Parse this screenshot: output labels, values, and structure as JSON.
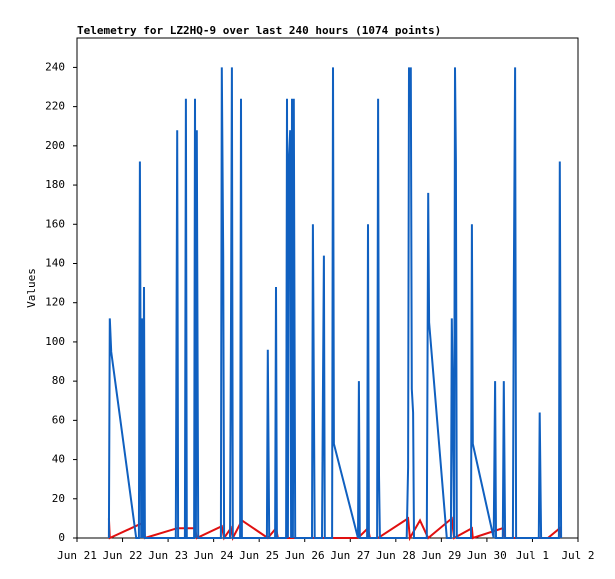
{
  "chart_data": {
    "type": "line",
    "title": "Telemetry for LZ2HQ-9 over last 240 hours (1074 points)",
    "ylabel": "Values",
    "xlim": [
      0,
      11
    ],
    "ylim": [
      0,
      255
    ],
    "xticks": [
      {
        "value": 0,
        "label": "Jun 21"
      },
      {
        "value": 1,
        "label": "Jun 22"
      },
      {
        "value": 2,
        "label": "Jun 23"
      },
      {
        "value": 3,
        "label": "Jun 24"
      },
      {
        "value": 4,
        "label": "Jun 25"
      },
      {
        "value": 5,
        "label": "Jun 26"
      },
      {
        "value": 6,
        "label": "Jun 27"
      },
      {
        "value": 7,
        "label": "Jun 28"
      },
      {
        "value": 8,
        "label": "Jun 29"
      },
      {
        "value": 9,
        "label": "Jun 30"
      },
      {
        "value": 10,
        "label": "Jul 1"
      },
      {
        "value": 11,
        "label": "Jul 2"
      }
    ],
    "yticks": [
      0,
      20,
      40,
      60,
      80,
      100,
      120,
      140,
      160,
      180,
      200,
      220,
      240
    ],
    "series": [
      {
        "color": "#1060c0",
        "x": [
          0.7,
          0.72,
          0.75,
          1.3,
          1.36,
          1.38,
          1.41,
          1.43,
          1.45,
          1.47,
          1.49,
          2.17,
          2.2,
          2.22,
          2.37,
          2.39,
          2.41,
          2.57,
          2.59,
          2.61,
          2.63,
          2.66,
          3.16,
          3.18,
          3.21,
          3.23,
          3.36,
          3.38,
          3.4,
          3.42,
          3.58,
          3.6,
          3.62,
          4.17,
          4.19,
          4.22,
          4.35,
          4.37,
          4.39,
          4.59,
          4.61,
          4.63,
          4.65,
          4.68,
          4.7,
          4.72,
          4.74,
          4.76,
          4.79,
          5.16,
          5.18,
          5.2,
          5.22,
          5.38,
          5.4,
          5.42,
          5.44,
          5.6,
          5.62,
          5.64,
          6.17,
          6.19,
          6.21,
          6.37,
          6.39,
          6.41,
          6.59,
          6.61,
          6.63,
          6.65,
          7.24,
          7.27,
          7.29,
          7.31,
          7.33,
          7.35,
          7.38,
          7.4,
          7.68,
          7.71,
          7.73,
          8.12,
          8.21,
          8.23,
          8.25,
          8.28,
          8.3,
          8.32,
          8.34,
          8.65,
          8.67,
          8.69,
          9.15,
          9.18,
          9.2,
          9.35,
          9.37,
          9.4,
          9.57,
          9.59,
          9.62,
          9.64,
          10.14,
          10.16,
          10.19,
          10.58,
          10.6,
          10.63
        ],
        "values": [
          0,
          112,
          95,
          0,
          0,
          192,
          0,
          112,
          0,
          128,
          0,
          0,
          208,
          0,
          0,
          224,
          0,
          0,
          224,
          0,
          208,
          0,
          0,
          240,
          144,
          0,
          0,
          96,
          240,
          0,
          0,
          224,
          0,
          0,
          96,
          0,
          0,
          128,
          0,
          0,
          224,
          0,
          192,
          208,
          0,
          224,
          0,
          224,
          0,
          0,
          160,
          80,
          0,
          0,
          72,
          144,
          0,
          0,
          240,
          48,
          0,
          80,
          0,
          0,
          160,
          0,
          0,
          224,
          32,
          0,
          0,
          36,
          240,
          224,
          240,
          76,
          64,
          0,
          0,
          176,
          110,
          0,
          0,
          112,
          70,
          0,
          240,
          192,
          0,
          0,
          160,
          48,
          0,
          80,
          0,
          0,
          80,
          0,
          0,
          128,
          240,
          0,
          0,
          64,
          0,
          0,
          192,
          0
        ]
      },
      {
        "color": "#e01010",
        "x": [
          0.7,
          0.72,
          1.47,
          1.49,
          2.2,
          2.59,
          2.63,
          3.18,
          3.23,
          3.38,
          3.42,
          3.62,
          4.19,
          4.37,
          4.41,
          6.17,
          6.39,
          6.43,
          6.61,
          7.27,
          7.31,
          7.53,
          7.71,
          8.23,
          8.28,
          8.67,
          8.69,
          9.35,
          9.4,
          10.34,
          10.6,
          10.63
        ],
        "values": [
          10,
          0,
          8,
          0,
          5,
          5,
          0,
          6,
          0,
          5,
          0,
          9,
          0,
          5,
          0,
          0,
          5,
          0,
          0,
          10,
          0,
          9,
          0,
          10,
          0,
          5,
          0,
          5,
          0,
          0,
          5,
          0
        ]
      }
    ]
  }
}
